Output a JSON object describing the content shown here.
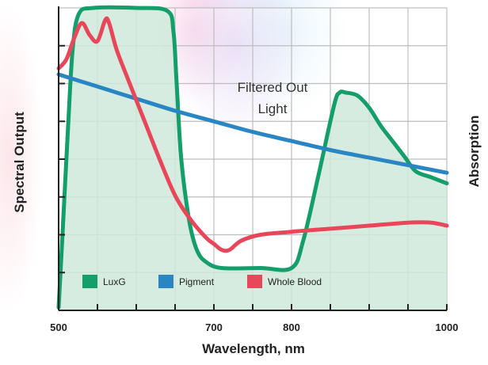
{
  "chart_data": {
    "type": "line",
    "xlabel": "Wavelength, nm",
    "ylabel_left": "Spectral Output",
    "ylabel_right": "Absorption",
    "xlim": [
      500,
      1000
    ],
    "x_ticks": [
      500,
      700,
      800,
      1000
    ],
    "grid": true,
    "annotation": [
      "Filtered Out",
      "Light"
    ],
    "legend_position": "bottom-left",
    "series": [
      {
        "name": "LuxG",
        "color": "#139e6a",
        "fill": "#cfe9dc",
        "x": [
          500,
          505,
          512,
          518,
          526,
          545,
          600,
          640,
          648,
          652,
          658,
          668,
          678,
          690,
          710,
          760,
          800,
          815,
          835,
          855,
          862,
          870,
          885,
          900,
          915,
          930,
          945,
          960,
          980,
          1000
        ],
        "y": [
          1,
          25,
          60,
          86,
          98,
          100,
          100,
          99,
          92,
          75,
          50,
          30,
          20,
          16,
          14,
          14,
          14,
          23,
          45,
          68,
          72,
          72,
          71,
          67,
          61,
          56,
          51,
          46,
          44,
          42
        ]
      },
      {
        "name": "Pigment",
        "color": "#2a86c3",
        "x": [
          500,
          550,
          600,
          650,
          700,
          750,
          800,
          850,
          900,
          950,
          1000
        ],
        "y": [
          78,
          74,
          70,
          66,
          62.5,
          59,
          56,
          53,
          50.5,
          48,
          45.5
        ]
      },
      {
        "name": "Whole Blood",
        "color": "#e8475a",
        "x": [
          500,
          510,
          520,
          530,
          540,
          550,
          560,
          565,
          575,
          590,
          610,
          630,
          650,
          670,
          690,
          700,
          710,
          720,
          735,
          760,
          800,
          850,
          900,
          950,
          980,
          1000
        ],
        "y": [
          80,
          83,
          90,
          95,
          91,
          89,
          96,
          95,
          86,
          76,
          63,
          50,
          38,
          30,
          24,
          22,
          20,
          20,
          23,
          25,
          26,
          27,
          28,
          29,
          29,
          28
        ]
      }
    ]
  }
}
